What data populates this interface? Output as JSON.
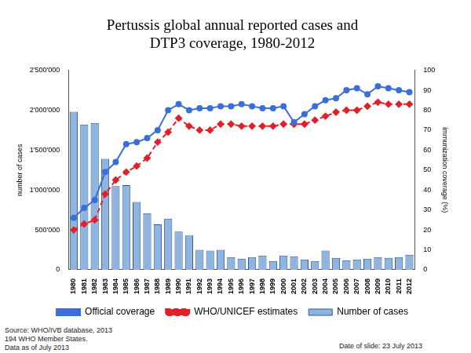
{
  "chart_data": {
    "type": "bar",
    "title": [
      "Pertussis global annual reported cases and",
      "DTP3 coverage, 1980-2012"
    ],
    "y_label": "number of cases",
    "y2_label": "immunization coverage (%)",
    "categories": [
      "1980",
      "1981",
      "1982",
      "1983",
      "1984",
      "1985",
      "1986",
      "1987",
      "1988",
      "1989",
      "1990",
      "1991",
      "1992",
      "1993",
      "1994",
      "1995",
      "1996",
      "1997",
      "1998",
      "1999",
      "2000",
      "2001",
      "2002",
      "2003",
      "2004",
      "2005",
      "2006",
      "2007",
      "2008",
      "2009",
      "2010",
      "2011",
      "2012"
    ],
    "series": [
      {
        "name": "Number of cases",
        "type": "bar",
        "color": "#8fb4e0",
        "axis": "y",
        "values": [
          1980000,
          1820000,
          1840000,
          1390000,
          1050000,
          1060000,
          850000,
          710000,
          570000,
          640000,
          480000,
          430000,
          250000,
          240000,
          250000,
          160000,
          140000,
          160000,
          180000,
          110000,
          180000,
          170000,
          130000,
          110000,
          240000,
          150000,
          120000,
          130000,
          140000,
          160000,
          150000,
          160000,
          190000
        ]
      },
      {
        "name": "Official coverage",
        "type": "line",
        "color": "#3a6fd8",
        "axis": "y2",
        "marker": "circle",
        "line_style": "solid",
        "values": [
          26,
          31,
          35,
          49,
          54,
          63,
          64,
          66,
          70,
          80,
          83,
          80,
          81,
          81,
          82,
          82,
          83,
          82,
          81,
          81,
          82,
          74,
          78,
          82,
          85,
          86,
          90,
          91,
          88,
          92,
          91,
          90,
          89
        ]
      },
      {
        "name": "WHO/UNICEF estimates",
        "type": "line",
        "color": "#e0202a",
        "axis": "y2",
        "marker": "diamond",
        "line_style": "dashed",
        "values": [
          20,
          23,
          25,
          38,
          45,
          49,
          52,
          56,
          64,
          69,
          76,
          72,
          70,
          70,
          73,
          73,
          72,
          72,
          72,
          72,
          73,
          73,
          73,
          75,
          77,
          79,
          80,
          80,
          82,
          84,
          83,
          83,
          83
        ]
      }
    ],
    "ylim": [
      0,
      2500000
    ],
    "yticks": [
      0,
      {
        "value": 500000,
        "label": "500'000"
      },
      {
        "value": 1000000,
        "label": "1'000'000"
      },
      {
        "value": 1500000,
        "label": "1'500'000"
      },
      {
        "value": 2000000,
        "label": "2'000'000"
      },
      {
        "value": 2500000,
        "label": "2'500'000"
      }
    ],
    "y2lim": [
      0,
      100
    ],
    "y2ticks": [
      0,
      10,
      20,
      30,
      40,
      50,
      60,
      70,
      80,
      90,
      100
    ],
    "grid": false,
    "legend": "bottom",
    "annotations": {
      "source": [
        "Source: WHO/IVB database, 2013",
        "194 WHO Member States.",
        "Data as of July 2013"
      ],
      "date": "Date of slide: 23 July 2013"
    }
  }
}
